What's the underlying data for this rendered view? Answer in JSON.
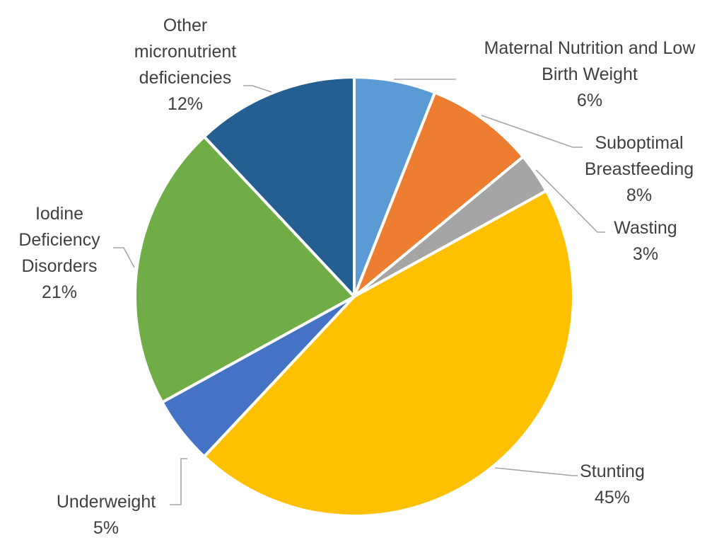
{
  "chart_data": {
    "type": "pie",
    "title": "",
    "legend": "none",
    "slices": [
      {
        "label_lines": [
          "Maternal Nutrition and Low",
          "Birth Weight"
        ],
        "value": 6,
        "percent_label": "6%",
        "color": "#5b9bd5"
      },
      {
        "label_lines": [
          "Suboptimal",
          "Breastfeeding"
        ],
        "value": 8,
        "percent_label": "8%",
        "color": "#ed7d31"
      },
      {
        "label_lines": [
          "Wasting"
        ],
        "value": 3,
        "percent_label": "3%",
        "color": "#a5a5a5"
      },
      {
        "label_lines": [
          "Stunting"
        ],
        "value": 45,
        "percent_label": "45%",
        "color": "#ffc000"
      },
      {
        "label_lines": [
          "Underweight"
        ],
        "value": 5,
        "percent_label": "5%",
        "color": "#4472c4"
      },
      {
        "label_lines": [
          "Iodine",
          "Deficiency",
          "Disorders"
        ],
        "value": 21,
        "percent_label": "21%",
        "color": "#70ad47"
      },
      {
        "label_lines": [
          "Other",
          "micronutrient",
          "deficiencies"
        ],
        "value": 12,
        "percent_label": "12%",
        "color": "#255e91"
      }
    ]
  }
}
